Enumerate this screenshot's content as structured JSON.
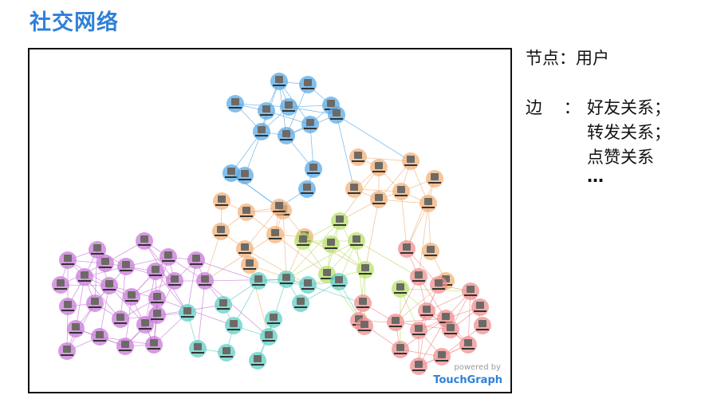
{
  "title": "社交网络",
  "legend": {
    "node_label": "节点：",
    "node_value": "用户",
    "edge_label": "边",
    "edge_sep": "：",
    "edge_items": [
      "好友关系；",
      "转发关系；",
      "点赞关系",
      "…"
    ]
  },
  "watermark": {
    "powered": "powered by",
    "brand": "TouchGraph"
  },
  "clusters": [
    {
      "name": "blue",
      "color": "#5aa9e6"
    },
    {
      "name": "orange",
      "color": "#f2b27a"
    },
    {
      "name": "green",
      "color": "#b8e06a"
    },
    {
      "name": "purple",
      "color": "#c87ad8"
    },
    {
      "name": "teal",
      "color": "#5fcfc4"
    },
    {
      "name": "red",
      "color": "#f08f8f"
    }
  ]
}
